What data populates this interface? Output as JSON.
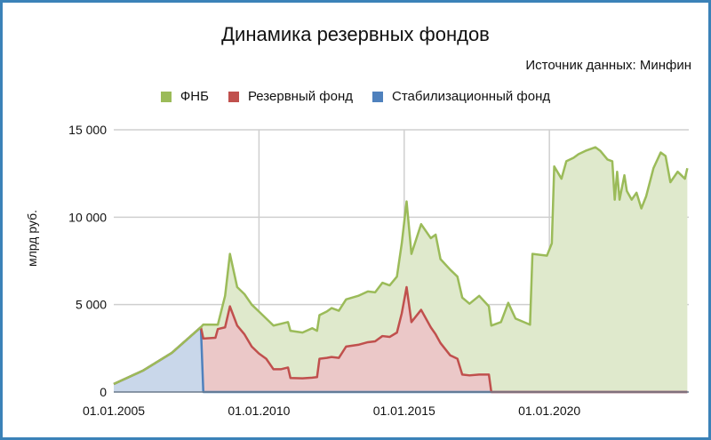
{
  "chart_data": {
    "type": "area",
    "stacked": true,
    "title": "Динамика резервных фондов",
    "subtitle": "Источник данных: Минфин",
    "ylabel": "млрд руб.",
    "xlabel": "",
    "ylim": [
      0,
      15000
    ],
    "xlim": [
      "2005-01",
      "2024-10"
    ],
    "grid": true,
    "legend_position": "top",
    "y_ticks": [
      "0",
      "5 000",
      "10 000",
      "15 000"
    ],
    "y_tick_values": [
      0,
      5000,
      10000,
      15000
    ],
    "x_ticks": [
      "01.01.2005",
      "01.01.2010",
      "01.01.2015",
      "01.01.2020"
    ],
    "x_tick_values": [
      "2005-01",
      "2010-01",
      "2015-01",
      "2020-01"
    ],
    "x": [
      "2005-01",
      "2006-01",
      "2007-01",
      "2008-01",
      "2008-02",
      "2008-07",
      "2008-08",
      "2008-11",
      "2009-01",
      "2009-04",
      "2009-07",
      "2009-10",
      "2010-01",
      "2010-04",
      "2010-07",
      "2010-10",
      "2011-01",
      "2011-02",
      "2011-07",
      "2011-11",
      "2012-01",
      "2012-02",
      "2012-05",
      "2012-07",
      "2012-10",
      "2013-01",
      "2013-06",
      "2013-10",
      "2014-01",
      "2014-04",
      "2014-07",
      "2014-10",
      "2014-12",
      "2015-02",
      "2015-04",
      "2015-08",
      "2015-12",
      "2016-02",
      "2016-04",
      "2016-08",
      "2016-11",
      "2017-01",
      "2017-04",
      "2017-08",
      "2017-12",
      "2018-01",
      "2018-05",
      "2018-08",
      "2018-11",
      "2019-05",
      "2019-06",
      "2019-12",
      "2020-02",
      "2020-03",
      "2020-06",
      "2020-08",
      "2020-11",
      "2021-01",
      "2021-04",
      "2021-08",
      "2021-10",
      "2022-01",
      "2022-03",
      "2022-04",
      "2022-05",
      "2022-06",
      "2022-08",
      "2022-09",
      "2022-11",
      "2023-01",
      "2023-03",
      "2023-05",
      "2023-08",
      "2023-11",
      "2024-01",
      "2024-03",
      "2024-06",
      "2024-09",
      "2024-10"
    ],
    "series": [
      {
        "name": "Стабилизационный фонд",
        "color": "#4f81bd",
        "fill": "#c9d7ea",
        "values": [
          460,
          1220,
          2240,
          3710,
          0,
          0,
          0,
          0,
          0,
          0,
          0,
          0,
          0,
          0,
          0,
          0,
          0,
          0,
          0,
          0,
          0,
          0,
          0,
          0,
          0,
          0,
          0,
          0,
          0,
          0,
          0,
          0,
          0,
          0,
          0,
          0,
          0,
          0,
          0,
          0,
          0,
          0,
          0,
          0,
          0,
          0,
          0,
          0,
          0,
          0,
          0,
          0,
          0,
          0,
          0,
          0,
          0,
          0,
          0,
          0,
          0,
          0,
          0,
          0,
          0,
          0,
          0,
          0,
          0,
          0,
          0,
          0,
          0,
          0,
          0,
          0,
          0,
          0,
          0
        ]
      },
      {
        "name": "Резервный фонд",
        "color": "#c0504d",
        "fill": "#ebc8c8",
        "values": [
          0,
          0,
          0,
          0,
          3060,
          3100,
          3600,
          3700,
          4900,
          3800,
          3300,
          2600,
          2200,
          1900,
          1300,
          1300,
          1400,
          800,
          780,
          820,
          850,
          1900,
          1950,
          2000,
          1950,
          2600,
          2700,
          2850,
          2900,
          3200,
          3150,
          3400,
          4500,
          6000,
          4000,
          4700,
          3700,
          3300,
          2800,
          2100,
          1900,
          1000,
          950,
          1000,
          1000,
          0,
          0,
          0,
          0,
          0,
          0,
          0,
          0,
          0,
          0,
          0,
          0,
          0,
          0,
          0,
          0,
          0,
          0,
          0,
          0,
          0,
          0,
          0,
          0,
          0,
          0,
          0,
          0,
          0,
          0,
          0,
          0,
          0,
          0
        ]
      },
      {
        "name": "ФНБ",
        "color": "#9bbb59",
        "fill": "#dfe9cc",
        "values": [
          0,
          0,
          0,
          0,
          800,
          750,
          250,
          1800,
          3000,
          2200,
          2300,
          2400,
          2400,
          2300,
          2500,
          2600,
          2600,
          2700,
          2620,
          2830,
          2650,
          2500,
          2650,
          2800,
          2700,
          2700,
          2800,
          2900,
          2800,
          3050,
          2950,
          3200,
          4000,
          4900,
          3900,
          4900,
          5100,
          5700,
          4800,
          4900,
          4700,
          4400,
          4100,
          4500,
          3900,
          3800,
          4000,
          5100,
          4200,
          3850,
          7900,
          7800,
          8500,
          12900,
          12200,
          13200,
          13400,
          13600,
          13800,
          14000,
          13800,
          13300,
          13200,
          11000,
          12600,
          11000,
          12400,
          11500,
          11000,
          11400,
          10500,
          11200,
          12800,
          13700,
          13500,
          12000,
          12600,
          12200,
          12800
        ]
      }
    ],
    "legend": [
      "ФНБ",
      "Резервный фонд",
      "Стабилизационный фонд"
    ]
  }
}
